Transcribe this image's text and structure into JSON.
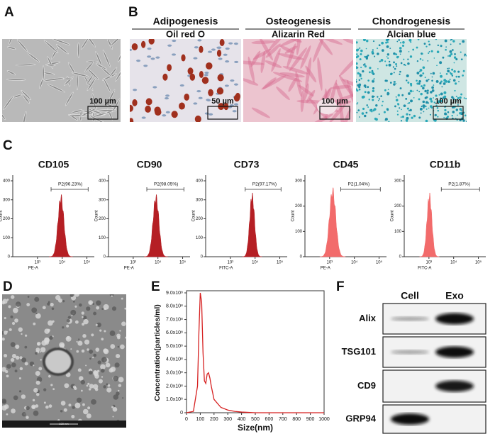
{
  "panel_labels": [
    "A",
    "B",
    "C",
    "D",
    "E",
    "F"
  ],
  "panel_a": {
    "scale_bar": "100 µm"
  },
  "panel_b": {
    "stains": [
      {
        "title": "Adipogenesis",
        "subtitle": "Oil red O",
        "scale_bar": "50 µm"
      },
      {
        "title": "Osteogenesis",
        "subtitle": "Alizarin Red",
        "scale_bar": "100 µm"
      },
      {
        "title": "Chondrogenesis",
        "subtitle": "Alcian blue",
        "scale_bar": "100 µm"
      }
    ]
  },
  "panel_c": {
    "plots": [
      {
        "title": "CD105",
        "gate": "P2(96.23%)",
        "x_label": "PE-A",
        "y_label": "Count",
        "yticks": [
          0,
          100,
          200,
          300,
          400
        ],
        "xticks": [
          "10³",
          "10⁴",
          "10⁵"
        ]
      },
      {
        "title": "CD90",
        "gate": "P2(98.05%)",
        "x_label": "PE-A",
        "y_label": "Count",
        "yticks": [
          0,
          100,
          200,
          300,
          400
        ],
        "xticks": [
          "10³",
          "10⁴",
          "10⁵"
        ]
      },
      {
        "title": "CD73",
        "gate": "P2(97.17%)",
        "x_label": "FITC-A",
        "y_label": "Count",
        "yticks": [
          0,
          100,
          200,
          300,
          400
        ],
        "xticks": [
          "10³",
          "10⁴",
          "10⁵"
        ]
      },
      {
        "title": "CD45",
        "gate": "P2(1.04%)",
        "x_label": "PE-A",
        "y_label": "Count",
        "yticks": [
          0,
          100,
          200,
          300
        ],
        "xticks": [
          "10³",
          "10⁴",
          "10⁵"
        ]
      },
      {
        "title": "CD11b",
        "gate": "P2(1.87%)",
        "x_label": "FITC-A",
        "y_label": "Count",
        "yticks": [
          0,
          100,
          200,
          300
        ],
        "xticks": [
          "10³",
          "10⁴",
          "10⁵"
        ]
      }
    ]
  },
  "panel_d": {
    "scale_bar": "100 nm"
  },
  "panel_e": {
    "chart_data": {
      "type": "line",
      "x_label": "Size(nm)",
      "y_label": "Concentration(particles/ml)",
      "color": "#d62020",
      "x": [
        0,
        50,
        80,
        90,
        100,
        110,
        120,
        130,
        140,
        150,
        160,
        170,
        180,
        200,
        250,
        300,
        350,
        400,
        500,
        600,
        800,
        1000
      ],
      "values": [
        0,
        10000000,
        200000000,
        600000000,
        900000000,
        830000000,
        450000000,
        240000000,
        220000000,
        290000000,
        300000000,
        260000000,
        200000000,
        100000000,
        40000000,
        20000000,
        10000000,
        5000000,
        0,
        0,
        0,
        0
      ],
      "xlim": [
        0,
        1000
      ],
      "ylim": [
        0,
        900000000
      ],
      "xticks": [
        0,
        100,
        200,
        300,
        400,
        500,
        600,
        700,
        800,
        900,
        1000
      ],
      "yticks": [
        0,
        {
          "value": 100000000,
          "label": "1.0x10⁸"
        },
        {
          "value": 200000000,
          "label": "2.0x10⁸"
        },
        {
          "value": 300000000,
          "label": "3.0x10⁸"
        },
        {
          "value": 400000000,
          "label": "4.0x10⁸"
        },
        {
          "value": 500000000,
          "label": "5.0x10⁸"
        },
        {
          "value": 600000000,
          "label": "6.0x10⁸"
        },
        {
          "value": 700000000,
          "label": "7.0x10⁸"
        },
        {
          "value": 800000000,
          "label": "8.0x10⁸"
        },
        {
          "value": 900000000,
          "label": "9.0x10⁸"
        }
      ]
    }
  },
  "panel_f": {
    "columns": [
      "Cell",
      "Exo"
    ],
    "rows": [
      "Alix",
      "TSG101",
      "CD9",
      "GRP94"
    ]
  }
}
